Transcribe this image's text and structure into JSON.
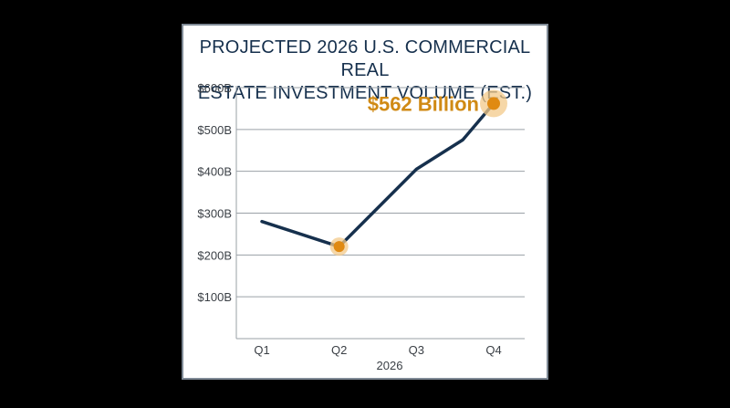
{
  "chart_data": {
    "type": "line",
    "title_lines": [
      "PROJECTED 2026 U.S. COMMERCIAL REAL",
      "ESTATE INVESTMENT VOLUME (EST.)"
    ],
    "categories": [
      "Q1",
      "Q2",
      "Q3",
      "Q4"
    ],
    "xlabel": "2026",
    "ylabel": "",
    "ylim": [
      0,
      600
    ],
    "yticks": [
      100,
      200,
      300,
      400,
      500,
      600
    ],
    "ytick_labels": [
      "$100B",
      "$200B",
      "$300B",
      "$400B",
      "$500B",
      "$600B"
    ],
    "grid": true,
    "series": [
      {
        "points": [
          {
            "x": 1,
            "y": 280
          },
          {
            "x": 2,
            "y": 220
          },
          {
            "x": 3,
            "y": 405
          },
          {
            "x": 3.6,
            "y": 475
          },
          {
            "x": 4,
            "y": 562
          }
        ]
      }
    ],
    "highlights": [
      {
        "x": 2,
        "y": 220
      },
      {
        "x": 4,
        "y": 562
      }
    ],
    "annotation": {
      "text": "$562 Billion",
      "x": 4,
      "y": 562
    },
    "colors": {
      "line": "#16304d",
      "highlight": "#e08a12",
      "highlight_halo": "#f3c98a",
      "annotation": "#d08a14",
      "grid": "#9aa0a6",
      "title": "#16304d"
    }
  }
}
